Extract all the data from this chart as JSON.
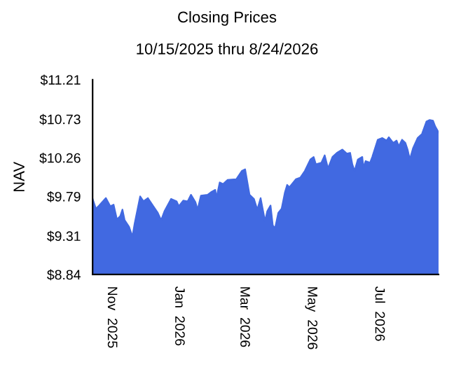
{
  "chart_data": {
    "type": "area",
    "title": "Closing Prices",
    "subtitle": "10/15/2025 thru 8/24/2026",
    "ylabel": "NAV",
    "x": [
      "2025-10-15",
      "2025-10-18",
      "2025-10-21",
      "2025-10-27",
      "2025-10-31",
      "2025-11-03",
      "2025-11-06",
      "2025-11-09",
      "2025-11-11",
      "2025-11-13",
      "2025-11-17",
      "2025-11-20",
      "2025-11-22",
      "2025-11-27",
      "2025-11-30",
      "2025-12-04",
      "2025-12-09",
      "2025-12-13",
      "2025-12-16",
      "2025-12-19",
      "2025-12-25",
      "2025-12-30",
      "2026-01-01",
      "2026-01-05",
      "2026-01-09",
      "2026-01-12",
      "2026-01-16",
      "2026-01-18",
      "2026-01-21",
      "2026-01-27",
      "2026-01-30",
      "2026-02-03",
      "2026-02-04",
      "2026-02-07",
      "2026-02-10",
      "2026-02-14",
      "2026-02-22",
      "2026-02-27",
      "2026-03-02",
      "2026-03-06",
      "2026-03-10",
      "2026-03-13",
      "2026-03-16",
      "2026-03-20",
      "2026-03-22",
      "2026-03-25",
      "2026-03-27",
      "2026-03-29",
      "2026-04-01",
      "2026-04-04",
      "2026-04-07",
      "2026-04-09",
      "2026-04-11",
      "2026-04-17",
      "2026-04-21",
      "2026-04-25",
      "2026-04-30",
      "2026-05-03",
      "2026-05-05",
      "2026-05-10",
      "2026-05-13",
      "2026-05-16",
      "2026-05-20",
      "2026-05-24",
      "2026-05-29",
      "2026-06-02",
      "2026-06-05",
      "2026-06-07",
      "2026-06-09",
      "2026-06-12",
      "2026-06-16",
      "2026-06-17",
      "2026-06-19",
      "2026-06-23",
      "2026-06-25",
      "2026-06-30",
      "2026-07-04",
      "2026-07-08",
      "2026-07-10",
      "2026-07-14",
      "2026-07-17",
      "2026-07-19",
      "2026-07-22",
      "2026-07-25",
      "2026-07-27",
      "2026-07-29",
      "2026-08-01",
      "2026-08-05",
      "2026-08-09",
      "2026-08-13",
      "2026-08-16",
      "2026-08-19",
      "2026-08-21",
      "2026-08-24"
    ],
    "series": [
      {
        "color": "#4169e1",
        "values": [
          9.76,
          9.64,
          9.68,
          9.77,
          9.67,
          9.69,
          9.51,
          9.55,
          9.63,
          9.5,
          9.42,
          9.3,
          9.46,
          9.79,
          9.73,
          9.77,
          9.67,
          9.59,
          9.5,
          9.61,
          9.76,
          9.73,
          9.67,
          9.74,
          9.73,
          9.81,
          9.72,
          9.63,
          9.8,
          9.81,
          9.84,
          9.87,
          9.77,
          9.96,
          9.94,
          9.99,
          10.0,
          10.1,
          10.12,
          9.81,
          9.76,
          9.63,
          9.77,
          9.49,
          9.61,
          9.68,
          9.44,
          9.4,
          9.59,
          9.64,
          9.84,
          9.93,
          9.9,
          10.0,
          10.02,
          10.1,
          10.24,
          10.27,
          10.18,
          10.2,
          10.29,
          10.13,
          10.27,
          10.32,
          10.36,
          10.31,
          10.32,
          10.18,
          10.1,
          10.24,
          10.27,
          10.14,
          10.22,
          10.2,
          10.27,
          10.48,
          10.5,
          10.47,
          10.51,
          10.44,
          10.47,
          10.4,
          10.48,
          10.44,
          10.36,
          10.24,
          10.38,
          10.5,
          10.55,
          10.7,
          10.72,
          10.71,
          10.64,
          10.57
        ]
      }
    ],
    "xlim": [
      "2025-10-15",
      "2026-08-24"
    ],
    "xticks": [
      {
        "value": "2025-11-01",
        "label": "Nov  2025"
      },
      {
        "value": "2026-01-01",
        "label": "Jan  2026"
      },
      {
        "value": "2026-03-01",
        "label": "Mar  2026"
      },
      {
        "value": "2026-05-01",
        "label": "May  2026"
      },
      {
        "value": "2026-07-01",
        "label": "Jul  2026"
      }
    ],
    "ylim": [
      8.84,
      11.21
    ],
    "yticks": [
      {
        "value": 8.84,
        "label": "$8.84"
      },
      {
        "value": 9.31,
        "label": "$9.31"
      },
      {
        "value": 9.79,
        "label": "$9.79"
      },
      {
        "value": 10.26,
        "label": "$10.26"
      },
      {
        "value": 10.73,
        "label": "$10.73"
      },
      {
        "value": 11.21,
        "label": "$11.21"
      }
    ],
    "grid": false,
    "legend": false
  }
}
